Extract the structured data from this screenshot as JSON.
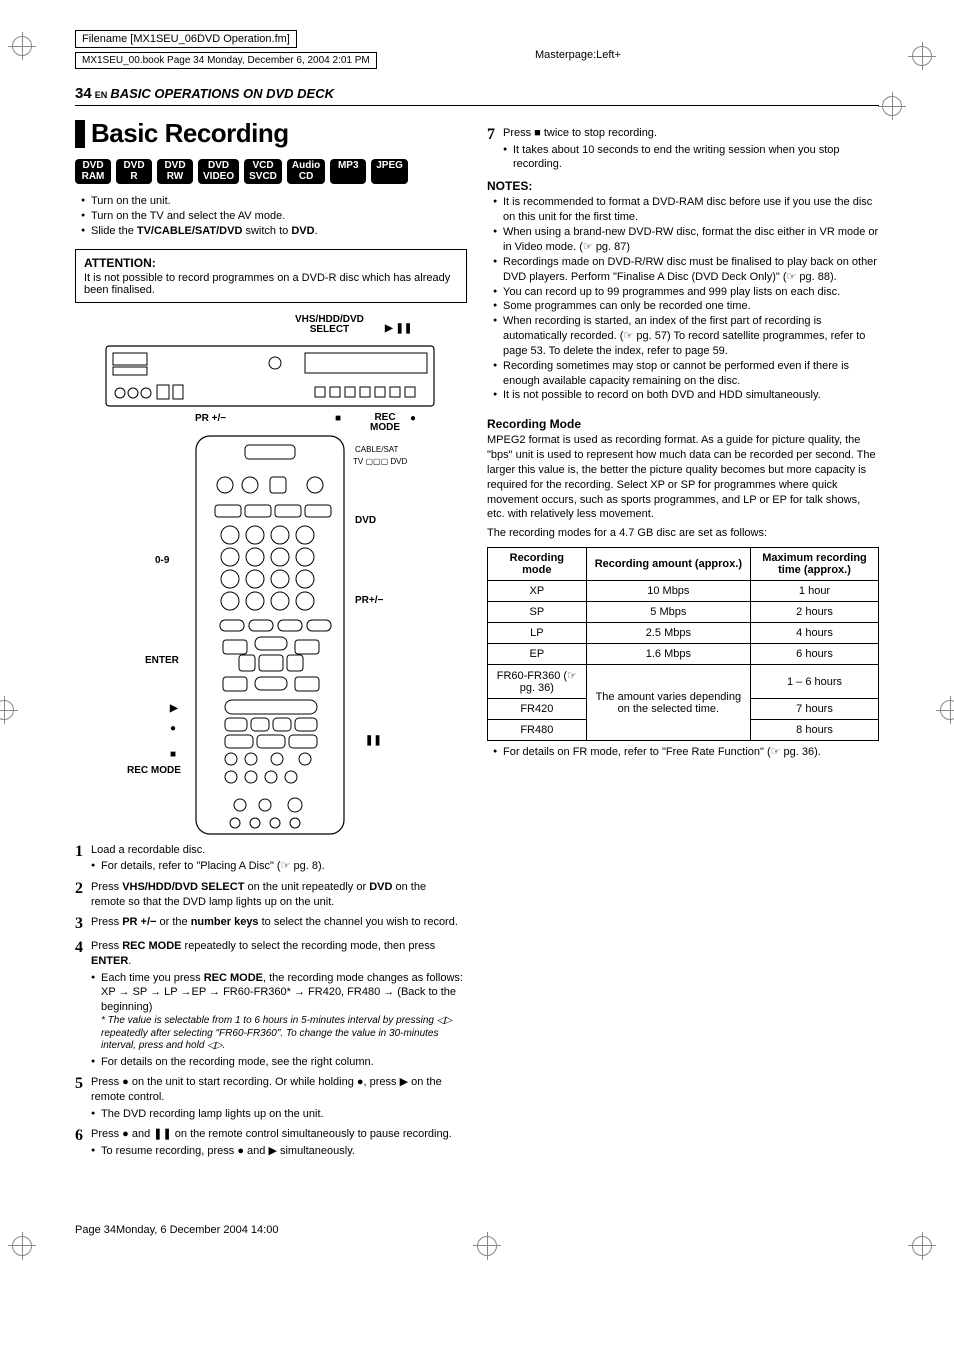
{
  "meta": {
    "filename": "Filename [MX1SEU_06DVD Operation.fm]",
    "bookinfo": "MX1SEU_00.book  Page 34  Monday, December 6, 2004  2:01 PM",
    "masterpage": "Masterpage:Left+",
    "footer": "Page 34Monday, 6 December 2004  14:00",
    "page_number": "34",
    "en_tag": "EN",
    "section_title": "BASIC OPERATIONS ON DVD DECK"
  },
  "heading": "Basic Recording",
  "format_badges": [
    [
      "DVD",
      "RAM"
    ],
    [
      "DVD",
      "R"
    ],
    [
      "DVD",
      "RW"
    ],
    [
      "DVD",
      "VIDEO"
    ],
    [
      "VCD",
      "SVCD"
    ],
    [
      "Audio",
      "CD"
    ],
    [
      "MP3"
    ],
    [
      "JPEG"
    ]
  ],
  "pre_steps": [
    "Turn on the unit.",
    "Turn on the TV and select the AV mode.",
    "Slide the <b>TV/CABLE/SAT/DVD</b> switch to <b>DVD</b>."
  ],
  "attention": {
    "title": "ATTENTION:",
    "text": "It is not possible to record programmes on a DVD-R disc which has already been finalised."
  },
  "figure_labels": {
    "select": "VHS/HDD/DVD\nSELECT",
    "play_pause": "▶  ❚❚",
    "pr_top": "PR +/−",
    "stop": "■",
    "rec": "●",
    "rec_mode_top": "REC\nMODE",
    "cable_sat": "CABLE/SAT",
    "tv_dvd": "TV ▢▢▢ DVD",
    "dvd": "DVD",
    "zero_nine": "0-9",
    "pr_side": "PR+/−",
    "enter": "ENTER",
    "play": "▶",
    "rec_btn": "●",
    "pause": "❚❚",
    "stop_btn": "■",
    "rec_mode_btn": "REC MODE"
  },
  "steps": [
    {
      "n": "1",
      "text": "Load a recordable disc.",
      "subs": [
        "For details, refer to \"Placing A Disc\" (☞ pg. 8)."
      ]
    },
    {
      "n": "2",
      "text": "Press <b>VHS/HDD/DVD SELECT</b> on the unit repeatedly or <b>DVD</b> on the remote so that the DVD lamp lights up on the unit."
    },
    {
      "n": "3",
      "text": "Press <b>PR +/−</b> or the <b>number keys</b> to select the channel you wish to record."
    },
    {
      "n": "4",
      "text": "Press <b>REC MODE</b> repeatedly to select the recording mode, then press <b>ENTER</b>.",
      "subs": [
        "Each time you press <b>REC MODE</b>, the recording mode changes as follows:"
      ],
      "extra_plain": "XP → SP → LP →EP → FR60-FR360* → FR420, FR480 → (Back to the beginning)",
      "extra_italic": "* The value is selectable from 1 to 6 hours in 5-minutes interval by pressing ◁▷ repeatedly after selecting \"FR60-FR360\". To change the value in 30-minutes interval, press and hold ◁▷.",
      "subs2": [
        "For details on the recording mode, see the right column."
      ]
    },
    {
      "n": "5",
      "text": "Press ● on the unit to start recording. Or while holding ●, press ▶ on the remote control.",
      "subs": [
        "The DVD recording lamp lights up on the unit."
      ]
    },
    {
      "n": "6",
      "text": "Press ● and ❚❚ on the remote control simultaneously to pause recording.",
      "subs": [
        "To resume recording, press ● and ▶ simultaneously."
      ]
    },
    {
      "n": "7",
      "text": "Press ■ twice to stop recording.",
      "subs": [
        "It takes about 10 seconds to end the writing session when you stop recording."
      ]
    }
  ],
  "notes_title": "NOTES:",
  "notes": [
    "It is recommended to format a DVD-RAM disc before use if you use the disc on this unit for the first time.",
    "When using a brand-new DVD-RW disc, format the disc either in VR mode or in Video mode. (☞ pg. 87)",
    "Recordings made on DVD-R/RW disc must be finalised to play back on other DVD players. Perform \"Finalise A Disc (DVD Deck Only)\" (☞ pg. 88).",
    "You can record up to 99 programmes and 999 play lists on each disc.",
    "Some programmes can only be recorded one time.",
    "When recording is started, an index of the first part of recording is automatically recorded. (☞ pg. 57) To record satellite programmes, refer to page 53. To delete the index, refer to page 59.",
    "Recording sometimes may stop or cannot be performed even if there is enough available capacity remaining on the disc.",
    "It is not possible to record on both DVD and HDD simultaneously."
  ],
  "recording_mode": {
    "title": "Recording Mode",
    "para": "MPEG2 format is used as recording format. As a guide for picture quality, the \"bps\" unit is used to represent how much data can be recorded per second. The larger this value is, the better the picture quality becomes but more capacity is required for the recording. Select XP or SP for programmes where quick movement occurs, such as sports programmes, and LP or EP for talk shows, etc. with relatively less movement.",
    "para2": "The recording modes for a 4.7 GB disc are set as follows:",
    "table": {
      "headers": [
        "Recording mode",
        "Recording amount (approx.)",
        "Maximum recording time (approx.)"
      ],
      "rows": [
        [
          "XP",
          "10 Mbps",
          "1 hour"
        ],
        [
          "SP",
          "5 Mbps",
          "2 hours"
        ],
        [
          "LP",
          "2.5 Mbps",
          "4 hours"
        ],
        [
          "EP",
          "1.6 Mbps",
          "6 hours"
        ],
        [
          "FR60-FR360 (☞ pg. 36)",
          "The amount varies depending on the selected time.",
          "1 – 6 hours"
        ],
        [
          "FR420",
          "__span__",
          "7 hours"
        ],
        [
          "FR480",
          "__span__",
          "8 hours"
        ]
      ]
    },
    "footnote": "For details on FR mode, refer to \"Free Rate Function\" (☞ pg. 36)."
  },
  "colors": {
    "black": "#000000",
    "grey": "#888888",
    "white": "#ffffff"
  }
}
